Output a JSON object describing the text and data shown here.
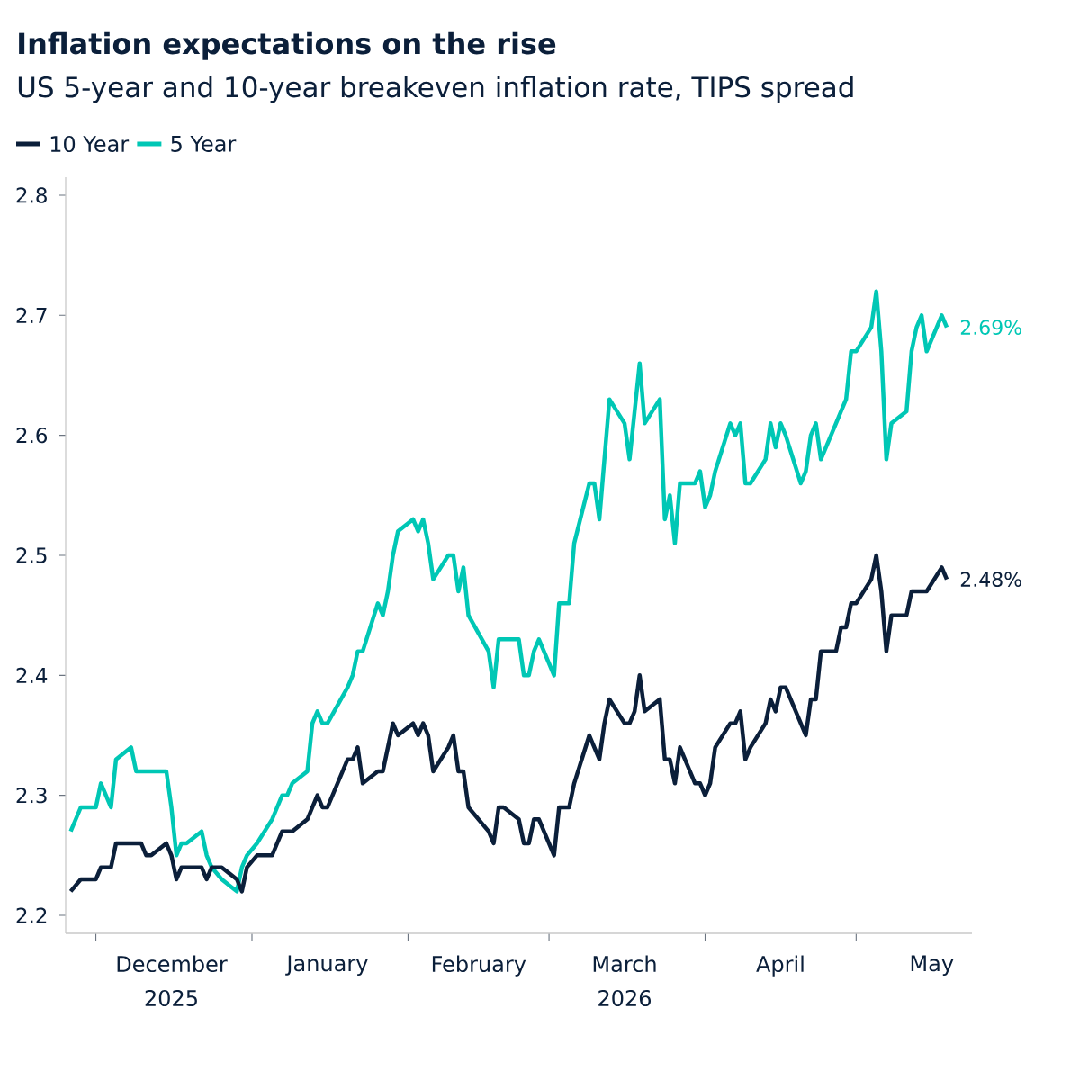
{
  "chart_data": {
    "type": "line",
    "title": "Inflation expectations on the rise",
    "subtitle": "US 5-year and 10-year breakeven inflation rate, TIPS spread",
    "x": [
      "2025-11-26",
      "2025-11-28",
      "2025-12-01",
      "2025-12-02",
      "2025-12-03",
      "2025-12-04",
      "2025-12-05",
      "2025-12-08",
      "2025-12-09",
      "2025-12-10",
      "2025-12-11",
      "2025-12-12",
      "2025-12-15",
      "2025-12-16",
      "2025-12-17",
      "2025-12-18",
      "2025-12-19",
      "2025-12-22",
      "2025-12-23",
      "2025-12-24",
      "2025-12-26",
      "2025-12-29",
      "2025-12-30",
      "2025-12-31",
      "2026-01-02",
      "2026-01-05",
      "2026-01-06",
      "2026-01-07",
      "2026-01-08",
      "2026-01-09",
      "2026-01-12",
      "2026-01-13",
      "2026-01-14",
      "2026-01-15",
      "2026-01-16",
      "2026-01-20",
      "2026-01-21",
      "2026-01-22",
      "2026-01-23",
      "2026-01-26",
      "2026-01-27",
      "2026-01-28",
      "2026-01-29",
      "2026-01-30",
      "2026-02-02",
      "2026-02-03",
      "2026-02-04",
      "2026-02-05",
      "2026-02-06",
      "2026-02-09",
      "2026-02-10",
      "2026-02-11",
      "2026-02-12",
      "2026-02-13",
      "2026-02-17",
      "2026-02-18",
      "2026-02-19",
      "2026-02-20",
      "2026-02-23",
      "2026-02-24",
      "2026-02-25",
      "2026-02-26",
      "2026-02-27",
      "2026-03-02",
      "2026-03-03",
      "2026-03-04",
      "2026-03-05",
      "2026-03-06",
      "2026-03-09",
      "2026-03-10",
      "2026-03-11",
      "2026-03-12",
      "2026-03-13",
      "2026-03-16",
      "2026-03-17",
      "2026-03-18",
      "2026-03-19",
      "2026-03-20",
      "2026-03-23",
      "2026-03-24",
      "2026-03-25",
      "2026-03-26",
      "2026-03-27",
      "2026-03-30",
      "2026-03-31",
      "2026-04-01",
      "2026-04-02",
      "2026-04-03",
      "2026-04-06",
      "2026-04-07",
      "2026-04-08",
      "2026-04-09",
      "2026-04-10",
      "2026-04-13",
      "2026-04-14",
      "2026-04-15",
      "2026-04-16",
      "2026-04-17",
      "2026-04-20",
      "2026-04-21",
      "2026-04-22",
      "2026-04-23",
      "2026-04-24",
      "2026-04-27",
      "2026-04-28",
      "2026-04-29",
      "2026-04-30",
      "2026-05-01",
      "2026-05-04",
      "2026-05-05",
      "2026-05-06",
      "2026-05-07",
      "2026-05-08",
      "2026-05-11",
      "2026-05-12",
      "2026-05-13",
      "2026-05-14",
      "2026-05-15",
      "2026-05-18",
      "2026-05-19"
    ],
    "xlim": [
      "2025-11-25",
      "2026-05-24"
    ],
    "xticks": [
      {
        "value": "2025-12-01",
        "label": null
      },
      {
        "value": "2025-12-16",
        "label": "December 2025"
      },
      {
        "value": "2026-01-01",
        "label": null
      },
      {
        "value": "2026-01-16",
        "label": "January"
      },
      {
        "value": "2026-02-01",
        "label": null
      },
      {
        "value": "2026-02-15",
        "label": "February"
      },
      {
        "value": "2026-03-01",
        "label": null
      },
      {
        "value": "2026-03-16",
        "label": "March 2026"
      },
      {
        "value": "2026-04-01",
        "label": null
      },
      {
        "value": "2026-04-16",
        "label": "April"
      },
      {
        "value": "2026-05-01",
        "label": null
      },
      {
        "value": "2026-05-16",
        "label": "May"
      }
    ],
    "ylim": [
      2.185,
      2.815
    ],
    "yticks": [
      2.2,
      2.3,
      2.4,
      2.5,
      2.6,
      2.7,
      2.8
    ],
    "legend": "top left",
    "marker": "none",
    "series": [
      {
        "name": "10 Year",
        "color": "#0b1f3a",
        "values": [
          2.22,
          2.23,
          2.23,
          2.24,
          2.24,
          2.24,
          2.26,
          2.26,
          2.26,
          2.26,
          2.25,
          2.25,
          2.26,
          2.25,
          2.23,
          2.24,
          2.24,
          2.24,
          2.23,
          2.24,
          2.24,
          2.23,
          2.22,
          2.24,
          2.25,
          2.25,
          2.26,
          2.27,
          2.27,
          2.27,
          2.28,
          2.29,
          2.3,
          2.29,
          2.29,
          2.33,
          2.33,
          2.34,
          2.31,
          2.32,
          2.32,
          2.34,
          2.36,
          2.35,
          2.36,
          2.35,
          2.36,
          2.35,
          2.32,
          2.34,
          2.35,
          2.32,
          2.32,
          2.29,
          2.27,
          2.26,
          2.29,
          2.29,
          2.28,
          2.26,
          2.26,
          2.28,
          2.28,
          2.25,
          2.29,
          2.29,
          2.29,
          2.31,
          2.35,
          2.34,
          2.33,
          2.36,
          2.38,
          2.36,
          2.36,
          2.37,
          2.4,
          2.37,
          2.38,
          2.33,
          2.33,
          2.31,
          2.34,
          2.31,
          2.31,
          2.3,
          2.31,
          2.34,
          2.36,
          2.36,
          2.37,
          2.33,
          2.34,
          2.36,
          2.38,
          2.37,
          2.39,
          2.39,
          2.36,
          2.35,
          2.38,
          2.38,
          2.42,
          2.42,
          2.44,
          2.44,
          2.46,
          2.46,
          2.48,
          2.5,
          2.47,
          2.42,
          2.45,
          2.45,
          2.47,
          2.47,
          2.47,
          2.47,
          2.49,
          2.48
        ],
        "value_labels": [
          null,
          null,
          null,
          null,
          null,
          null,
          null,
          null,
          null,
          null,
          null,
          null,
          null,
          null,
          null,
          null,
          null,
          null,
          null,
          null,
          null,
          null,
          null,
          null,
          null,
          null,
          null,
          null,
          null,
          null,
          null,
          null,
          null,
          null,
          null,
          null,
          null,
          null,
          null,
          null,
          null,
          null,
          null,
          null,
          null,
          null,
          null,
          null,
          null,
          null,
          null,
          null,
          null,
          null,
          null,
          null,
          null,
          null,
          null,
          null,
          null,
          null,
          null,
          null,
          null,
          null,
          null,
          null,
          null,
          null,
          null,
          null,
          null,
          null,
          null,
          null,
          null,
          null,
          null,
          null,
          null,
          null,
          null,
          null,
          null,
          null,
          null,
          null,
          null,
          null,
          null,
          null,
          null,
          null,
          null,
          null,
          null,
          null,
          null,
          null,
          null,
          null,
          null,
          null,
          null,
          null,
          null,
          null,
          null,
          null,
          null,
          null,
          null,
          null,
          null,
          null,
          null,
          null,
          null,
          "2.48%"
        ]
      },
      {
        "name": "5 Year",
        "color": "#00c7b5",
        "values": [
          2.27,
          2.29,
          2.29,
          2.31,
          2.3,
          2.29,
          2.33,
          2.34,
          2.32,
          2.32,
          2.32,
          2.32,
          2.32,
          2.29,
          2.25,
          2.26,
          2.26,
          2.27,
          2.25,
          2.24,
          2.23,
          2.22,
          2.24,
          2.25,
          2.26,
          2.28,
          2.29,
          2.3,
          2.3,
          2.31,
          2.32,
          2.36,
          2.37,
          2.36,
          2.36,
          2.39,
          2.4,
          2.42,
          2.42,
          2.46,
          2.45,
          2.47,
          2.5,
          2.52,
          2.53,
          2.52,
          2.53,
          2.51,
          2.48,
          2.5,
          2.5,
          2.47,
          2.49,
          2.45,
          2.42,
          2.39,
          2.43,
          2.43,
          2.43,
          2.4,
          2.4,
          2.42,
          2.43,
          2.4,
          2.46,
          2.46,
          2.46,
          2.51,
          2.56,
          2.56,
          2.53,
          2.58,
          2.63,
          2.61,
          2.58,
          2.62,
          2.66,
          2.61,
          2.63,
          2.53,
          2.55,
          2.51,
          2.56,
          2.56,
          2.57,
          2.54,
          2.55,
          2.57,
          2.61,
          2.6,
          2.61,
          2.56,
          2.56,
          2.58,
          2.61,
          2.59,
          2.61,
          2.6,
          2.56,
          2.57,
          2.6,
          2.61,
          2.58,
          2.61,
          2.62,
          2.63,
          2.67,
          2.67,
          2.69,
          2.72,
          2.67,
          2.58,
          2.61,
          2.62,
          2.67,
          2.69,
          2.7,
          2.67,
          2.7,
          2.69
        ],
        "value_labels": [
          null,
          null,
          null,
          null,
          null,
          null,
          null,
          null,
          null,
          null,
          null,
          null,
          null,
          null,
          null,
          null,
          null,
          null,
          null,
          null,
          null,
          null,
          null,
          null,
          null,
          null,
          null,
          null,
          null,
          null,
          null,
          null,
          null,
          null,
          null,
          null,
          null,
          null,
          null,
          null,
          null,
          null,
          null,
          null,
          null,
          null,
          null,
          null,
          null,
          null,
          null,
          null,
          null,
          null,
          null,
          null,
          null,
          null,
          null,
          null,
          null,
          null,
          null,
          null,
          null,
          null,
          null,
          null,
          null,
          null,
          null,
          null,
          null,
          null,
          null,
          null,
          null,
          null,
          null,
          null,
          null,
          null,
          null,
          null,
          null,
          null,
          null,
          null,
          null,
          null,
          null,
          null,
          null,
          null,
          null,
          null,
          null,
          null,
          null,
          null,
          null,
          null,
          null,
          null,
          null,
          null,
          null,
          null,
          null,
          null,
          null,
          null,
          null,
          null,
          null,
          null,
          null,
          null,
          null,
          "2.69%"
        ]
      }
    ]
  }
}
